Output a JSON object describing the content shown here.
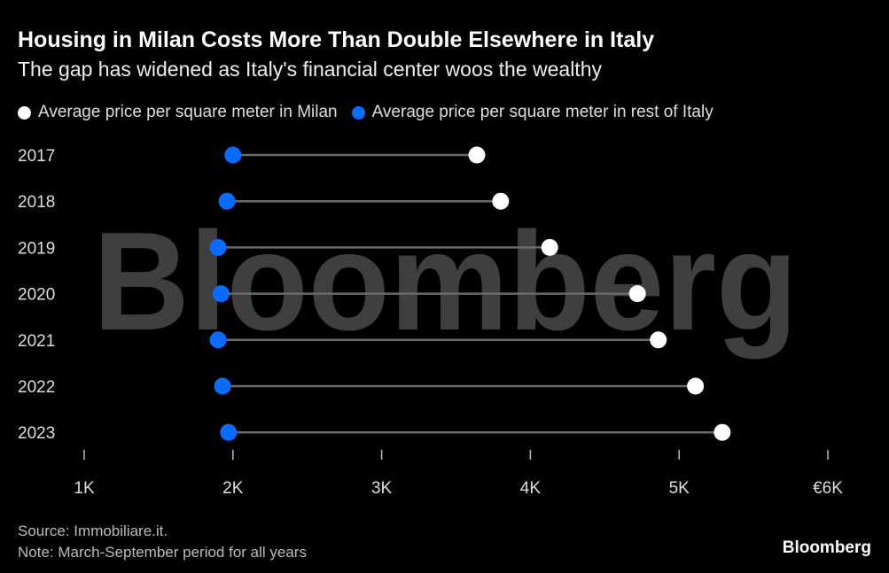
{
  "chart_data": {
    "type": "dumbbell",
    "title": "Housing in Milan Costs More Than Double Elsewhere in Italy",
    "subtitle": "The gap has widened as Italy's financial center woos the wealthy",
    "categories": [
      "2017",
      "2018",
      "2019",
      "2020",
      "2021",
      "2022",
      "2023"
    ],
    "series": [
      {
        "name": "Average price per square meter in Milan",
        "color": "#ffffff",
        "values": [
          3640,
          3800,
          4130,
          4720,
          4860,
          5110,
          5290
        ]
      },
      {
        "name": "Average price per square meter in rest of Italy",
        "color": "#0a6cff",
        "values": [
          2000,
          1960,
          1900,
          1920,
          1900,
          1930,
          1970
        ]
      }
    ],
    "xlim": [
      1000,
      6000
    ],
    "xticks": [
      1000,
      2000,
      3000,
      4000,
      5000,
      6000
    ],
    "xtick_labels": [
      "1K",
      "2K",
      "3K",
      "4K",
      "5K",
      "€6K"
    ],
    "xlabel": "",
    "ylabel": "",
    "legend_position": "top-left",
    "grid": false
  },
  "watermark": "Bloomberg",
  "footer": {
    "source": "Source: Immobiliare.it.",
    "note": "Note: March-September period for all years",
    "brand": "Bloomberg"
  }
}
